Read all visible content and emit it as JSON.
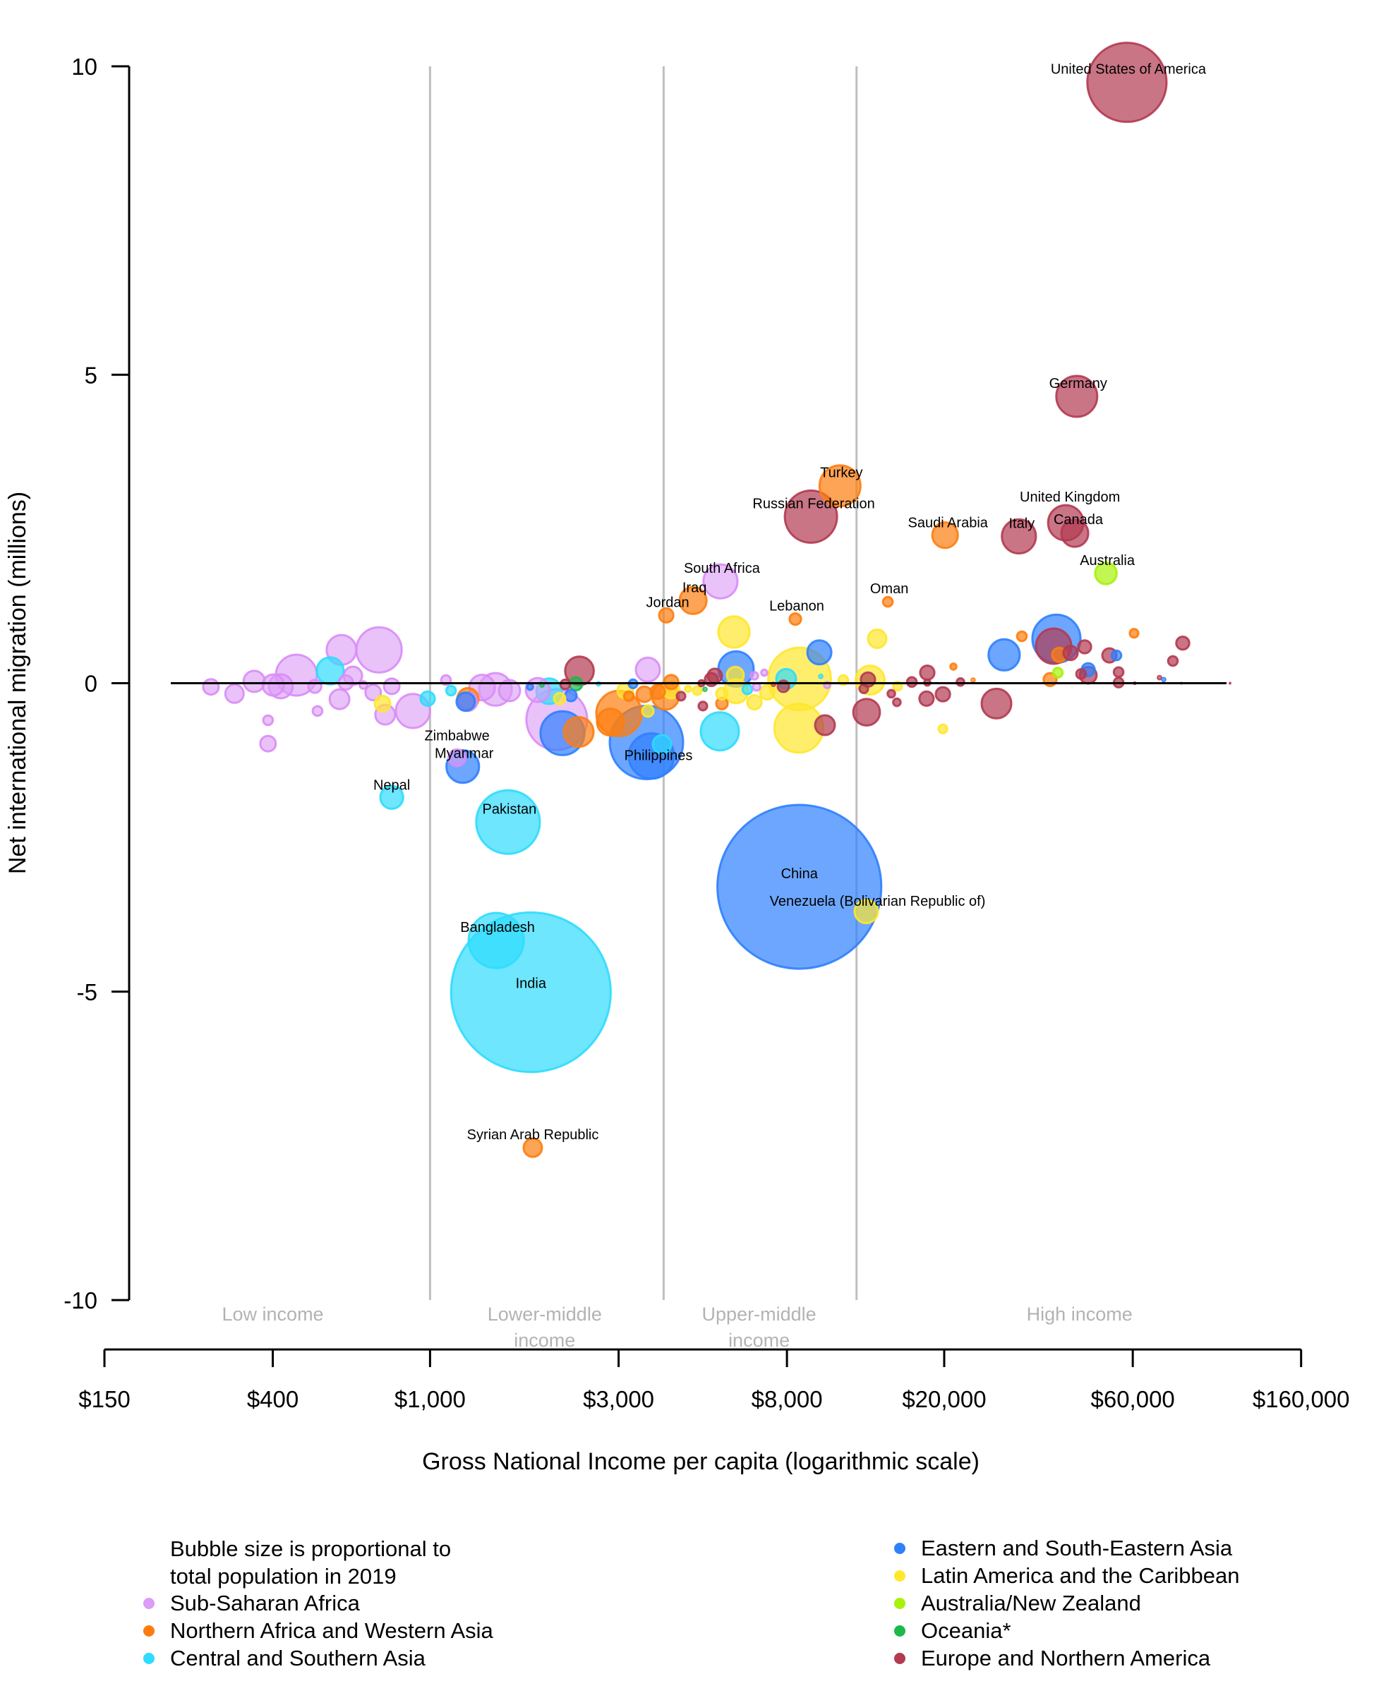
{
  "chart_data": {
    "type": "scatter",
    "subtype": "bubble",
    "title": "",
    "xlabel": "Gross National Income per capita (logarithmic scale)",
    "ylabel": "Net international migration (millions)",
    "xscale": "log",
    "xlim": [
      150,
      160000
    ],
    "ylim": [
      -10,
      10
    ],
    "x_ticks": [
      150,
      400,
      1000,
      3000,
      8000,
      20000,
      60000,
      160000
    ],
    "x_tick_labels": [
      "$150",
      "$400",
      "$1,000",
      "$3,000",
      "$8,000",
      "$20,000",
      "$60,000",
      "$160,000"
    ],
    "y_ticks": [
      10,
      5,
      0,
      -5,
      -10
    ],
    "y_tick_labels": [
      "10",
      "5",
      "0",
      "-5",
      "-10"
    ],
    "grid": false,
    "reference_line_y": 0,
    "income_thresholds": [
      1000,
      3900,
      12000
    ],
    "income_groups": [
      {
        "label": [
          "Low income"
        ],
        "center_gni": 400
      },
      {
        "label": [
          "Lower-middle",
          "income"
        ],
        "center_gni": 1950
      },
      {
        "label": [
          "Upper-middle",
          "income"
        ],
        "center_gni": 6800
      },
      {
        "label": [
          "High income"
        ],
        "center_gni": 44000
      }
    ],
    "size_note": [
      "Bubble size is proportional to",
      "total population in 2019"
    ],
    "size_variable": "population_millions",
    "legend_position": "bottom",
    "regions": [
      {
        "key": "SSA",
        "name": "Sub-Saharan Africa",
        "color": "#dc9cf7",
        "stroke": "#d98cf5",
        "column": "left"
      },
      {
        "key": "NAWA",
        "name": "Northern Africa and Western Asia",
        "color": "#fe7d10",
        "stroke": "#fe7d10",
        "column": "left"
      },
      {
        "key": "CSA",
        "name": "Central and Southern Asia",
        "color": "#2fdcfd",
        "stroke": "#2fdcfd",
        "column": "left"
      },
      {
        "key": "ESEA",
        "name": "Eastern and South-Eastern Asia",
        "color": "#2f80fd",
        "stroke": "#2f80fd",
        "column": "right"
      },
      {
        "key": "LAC",
        "name": "Latin America and the Caribbean",
        "color": "#ffe72e",
        "stroke": "#ffe72e",
        "column": "right"
      },
      {
        "key": "ANZ",
        "name": "Australia/New Zealand",
        "color": "#a6f20a",
        "stroke": "#a6f20a",
        "column": "right"
      },
      {
        "key": "OCE",
        "name": "Oceania*",
        "color": "#1cb84a",
        "stroke": "#1cb84a",
        "column": "right"
      },
      {
        "key": "ENA",
        "name": "Europe and Northern America",
        "color": "#b23a51",
        "stroke": "#b23a51",
        "column": "right"
      }
    ],
    "columns": [
      "label",
      "region",
      "gni_per_capita",
      "net_migration_millions",
      "population_millions"
    ],
    "points": [
      [
        "",
        "SSA",
        279,
        -0.06,
        13
      ],
      [
        "",
        "SSA",
        320,
        -0.17,
        18
      ],
      [
        "",
        "SSA",
        359,
        0.03,
        24
      ],
      [
        "",
        "SSA",
        401,
        -0.03,
        24
      ],
      [
        "",
        "SSA",
        419,
        -0.05,
        31
      ],
      [
        "",
        "SSA",
        459,
        0.13,
        90
      ],
      [
        "",
        "SSA",
        511,
        -0.05,
        9
      ],
      [
        "",
        "SSA",
        597,
        0.54,
        47
      ],
      [
        "",
        "SSA",
        743,
        0.54,
        110
      ],
      [
        "",
        "SSA",
        638,
        0.12,
        18
      ],
      [
        "",
        "SSA",
        612,
        0.01,
        11
      ],
      [
        "",
        "SSA",
        678,
        -0.03,
        3
      ],
      [
        "",
        "SSA",
        590,
        -0.26,
        21
      ],
      [
        "",
        "SSA",
        519,
        -0.45,
        5
      ],
      [
        "",
        "SSA",
        389,
        -0.6,
        5
      ],
      [
        "",
        "SSA",
        389,
        -0.98,
        13
      ],
      [
        "",
        "SSA",
        718,
        -0.15,
        13
      ],
      [
        "",
        "SSA",
        800,
        -0.05,
        13
      ],
      [
        "",
        "SSA",
        770,
        -0.51,
        21
      ],
      [
        "",
        "SSA",
        905,
        -0.45,
        62
      ],
      [
        "",
        "SSA",
        1097,
        0.05,
        5
      ],
      [
        "Zimbabwe",
        "SSA",
        1170,
        -1.21,
        15
      ],
      [
        "",
        "SSA",
        1247,
        -0.3,
        18
      ],
      [
        "",
        "SSA",
        1354,
        -0.07,
        35
      ],
      [
        "",
        "SSA",
        1464,
        -0.1,
        57
      ],
      [
        "",
        "SSA",
        1589,
        -0.12,
        24
      ],
      [
        "",
        "SSA",
        1873,
        -0.11,
        31
      ],
      [
        "",
        "SSA",
        2093,
        -0.59,
        198
      ],
      [
        "",
        "SSA",
        3557,
        0.22,
        31
      ],
      [
        "South Africa",
        "SSA",
        5430,
        1.65,
        62
      ],
      [
        "",
        "SSA",
        6619,
        0.12,
        3
      ],
      [
        "",
        "SSA",
        7011,
        0.17,
        2
      ],
      [
        "",
        "SSA",
        6700,
        -0.06,
        3
      ],
      [
        "",
        "SSA",
        10110,
        -0.03,
        2
      ],
      [
        "",
        "NAWA",
        1247,
        -0.25,
        24
      ],
      [
        "",
        "NAWA",
        2377,
        -0.79,
        47
      ],
      [
        "",
        "NAWA",
        3006,
        -0.49,
        110
      ],
      [
        "",
        "NAWA",
        2860,
        -0.63,
        39
      ],
      [
        "",
        "NAWA",
        3183,
        -0.21,
        5
      ],
      [
        "",
        "NAWA",
        3484,
        -0.18,
        13
      ],
      [
        "",
        "NAWA",
        3942,
        -0.21,
        39
      ],
      [
        "",
        "NAWA",
        4075,
        0.02,
        11
      ],
      [
        "",
        "NAWA",
        3768,
        -0.14,
        11
      ],
      [
        "Jordan",
        "NAWA",
        3960,
        1.1,
        11
      ],
      [
        "Iraq",
        "NAWA",
        4630,
        1.34,
        39
      ],
      [
        "",
        "NAWA",
        5478,
        -0.33,
        7
      ],
      [
        "Lebanon",
        "NAWA",
        8400,
        1.04,
        7
      ],
      [
        "Turkey",
        "NAWA",
        10900,
        3.2,
        90
      ],
      [
        "Oman",
        "NAWA",
        14400,
        1.32,
        5
      ],
      [
        "Saudi Arabia",
        "NAWA",
        20100,
        2.4,
        35
      ],
      [
        "",
        "NAWA",
        21105,
        0.27,
        2
      ],
      [
        "",
        "NAWA",
        23670,
        0.05,
        1
      ],
      [
        "",
        "NAWA",
        31440,
        0.76,
        5
      ],
      [
        "",
        "NAWA",
        39105,
        0.46,
        11
      ],
      [
        "",
        "NAWA",
        37065,
        0.06,
        9
      ],
      [
        "",
        "NAWA",
        60465,
        0.81,
        4
      ],
      [
        "Syrian Arab Republic",
        "NAWA",
        1820,
        -7.53,
        18
      ],
      [
        "",
        "CSA",
        559,
        0.2,
        39
      ],
      [
        "",
        "CSA",
        986,
        -0.25,
        11
      ],
      [
        "",
        "CSA",
        1130,
        -0.12,
        5
      ],
      [
        "Nepal",
        "CSA",
        800,
        -1.85,
        28
      ],
      [
        "Pakistan",
        "CSA",
        1575,
        -2.25,
        217
      ],
      [
        "Bangladesh",
        "CSA",
        1470,
        -4.17,
        163
      ],
      [
        "India",
        "CSA",
        1800,
        -5.01,
        1366
      ],
      [
        "",
        "CSA",
        2001,
        -0.13,
        35
      ],
      [
        "",
        "CSA",
        2667,
        -0.01,
        1
      ],
      [
        "",
        "CSA",
        3862,
        -0.99,
        18
      ],
      [
        "",
        "CSA",
        5411,
        -0.78,
        78
      ],
      [
        "",
        "CSA",
        6352,
        -0.1,
        5
      ],
      [
        "",
        "CSA",
        7963,
        0.07,
        21
      ],
      [
        "",
        "CSA",
        9743,
        0.11,
        1
      ],
      [
        "Myanmar",
        "ESEA",
        1210,
        -1.35,
        57
      ],
      [
        "",
        "ESEA",
        1231,
        -0.3,
        18
      ],
      [
        "",
        "ESEA",
        1791,
        -0.06,
        2
      ],
      [
        "",
        "ESEA",
        2163,
        -0.81,
        103
      ],
      [
        "",
        "ESEA",
        2272,
        -0.2,
        7
      ],
      [
        "",
        "ESEA",
        3263,
        -0.01,
        4
      ],
      [
        "",
        "ESEA",
        3528,
        -0.96,
        289
      ],
      [
        "Philippines",
        "ESEA",
        3631,
        -1.18,
        110
      ],
      [
        "",
        "ESEA",
        5946,
        0.23,
        67
      ],
      [
        "",
        "ESEA",
        9663,
        0.5,
        31
      ],
      [
        "China",
        "ESEA",
        8600,
        -3.3,
        1440
      ],
      [
        "",
        "ESEA",
        28365,
        0.46,
        52
      ],
      [
        "",
        "ESEA",
        38460,
        0.72,
        124
      ],
      [
        "",
        "ESEA",
        54555,
        0.45,
        5
      ],
      [
        "",
        "ESEA",
        46275,
        0.22,
        9
      ],
      [
        "",
        "ESEA",
        71850,
        0.06,
        1
      ],
      [
        "",
        "LAC",
        758,
        -0.33,
        13
      ],
      [
        "",
        "LAC",
        2128,
        -0.25,
        7
      ],
      [
        "",
        "LAC",
        3119,
        -0.12,
        13
      ],
      [
        "",
        "LAC",
        3557,
        -0.45,
        7
      ],
      [
        "",
        "LAC",
        4075,
        -0.11,
        15
      ],
      [
        "",
        "LAC",
        4497,
        -0.09,
        2
      ],
      [
        "",
        "LAC",
        4743,
        -0.12,
        4
      ],
      [
        "",
        "LAC",
        5922,
        0.13,
        15
      ],
      [
        "",
        "LAC",
        5874,
        0.83,
        52
      ],
      [
        "",
        "LAC",
        5946,
        -0.13,
        31
      ],
      [
        "",
        "LAC",
        5478,
        -0.17,
        7
      ],
      [
        "",
        "LAC",
        6619,
        -0.31,
        11
      ],
      [
        "",
        "LAC",
        7128,
        -0.15,
        11
      ],
      [
        "",
        "LAC",
        8611,
        0.07,
        211
      ],
      [
        "",
        "LAC",
        8576,
        -0.73,
        128
      ],
      [
        "",
        "LAC",
        11109,
        0.05,
        5
      ],
      [
        "",
        "LAC",
        13534,
        0.72,
        18
      ],
      [
        "",
        "LAC",
        12987,
        0.05,
        45
      ],
      [
        "",
        "LAC",
        15240,
        -0.05,
        4
      ],
      [
        "",
        "LAC",
        19845,
        -0.74,
        4
      ],
      [
        "Venezuela (Bolivarian Republic of)",
        "LAC",
        12700,
        -3.7,
        29
      ],
      [
        "Australia",
        "ANZ",
        51300,
        1.78,
        25
      ],
      [
        "",
        "ANZ",
        38775,
        0.17,
        5
      ],
      [
        "",
        "OCE",
        1920,
        -0.03,
        1
      ],
      [
        "",
        "OCE",
        2339,
        -0.01,
        9
      ],
      [
        "",
        "OCE",
        4963,
        -0.1,
        1
      ],
      [
        "",
        "ENA",
        2388,
        0.2,
        44
      ],
      [
        "",
        "ENA",
        2199,
        -0.02,
        5
      ],
      [
        "",
        "ENA",
        4316,
        -0.21,
        4
      ],
      [
        "",
        "ENA",
        4902,
        -0.37,
        4
      ],
      [
        "",
        "ENA",
        5256,
        0.12,
        11
      ],
      [
        "",
        "ENA",
        5150,
        0.06,
        9
      ],
      [
        "",
        "ENA",
        4862,
        0.0,
        2
      ],
      [
        "",
        "ENA",
        7836,
        -0.05,
        7
      ],
      [
        "",
        "ENA",
        7396,
        -0.02,
        1
      ],
      [
        "",
        "ENA",
        9985,
        -0.68,
        21
      ],
      [
        "Russian Federation",
        "ENA",
        9200,
        2.7,
        146
      ],
      [
        "",
        "ENA",
        12827,
        0.06,
        11
      ],
      [
        "",
        "ENA",
        12515,
        -0.09,
        4
      ],
      [
        "",
        "ENA",
        12723,
        -0.47,
        38
      ],
      [
        "",
        "ENA",
        14695,
        -0.17,
        3
      ],
      [
        "",
        "ENA",
        15180,
        -0.31,
        3
      ],
      [
        "",
        "ENA",
        16560,
        0.02,
        5
      ],
      [
        "",
        "ENA",
        18120,
        0.17,
        11
      ],
      [
        "",
        "ENA",
        18120,
        0.01,
        2
      ],
      [
        "",
        "ENA",
        18045,
        -0.25,
        11
      ],
      [
        "",
        "ENA",
        19845,
        -0.18,
        11
      ],
      [
        "",
        "ENA",
        21990,
        0.02,
        3
      ],
      [
        "",
        "ENA",
        27120,
        -0.33,
        47
      ],
      [
        "",
        "ENA",
        37830,
        0.6,
        67
      ],
      [
        "",
        "ENA",
        41760,
        0.49,
        11
      ],
      [
        "",
        "ENA",
        45330,
        0.59,
        9
      ],
      [
        "",
        "ENA",
        44400,
        0.15,
        5
      ],
      [
        "",
        "ENA",
        46275,
        0.13,
        15
      ],
      [
        "",
        "ENA",
        52380,
        0.45,
        11
      ],
      [
        "",
        "ENA",
        55245,
        0.18,
        5
      ],
      [
        "",
        "ENA",
        55245,
        0.01,
        5
      ],
      [
        "",
        "ENA",
        60705,
        0.0,
        0.4
      ],
      [
        "",
        "ENA",
        70095,
        0.09,
        1
      ],
      [
        "",
        "ENA",
        75795,
        0.36,
        5
      ],
      [
        "",
        "ENA",
        80295,
        0.65,
        9
      ],
      [
        "",
        "ENA",
        79635,
        0.0,
        0.1
      ],
      [
        "",
        "ENA",
        105735,
        0.0,
        0.1
      ],
      [
        "Italy",
        "ENA",
        30900,
        2.38,
        62
      ],
      [
        "United Kingdom",
        "ENA",
        40600,
        2.6,
        67
      ],
      [
        "Canada",
        "ENA",
        42800,
        2.43,
        39
      ],
      [
        "Germany",
        "ENA",
        43300,
        4.65,
        90
      ],
      [
        "United States of America",
        "ENA",
        58000,
        9.74,
        336
      ]
    ]
  }
}
